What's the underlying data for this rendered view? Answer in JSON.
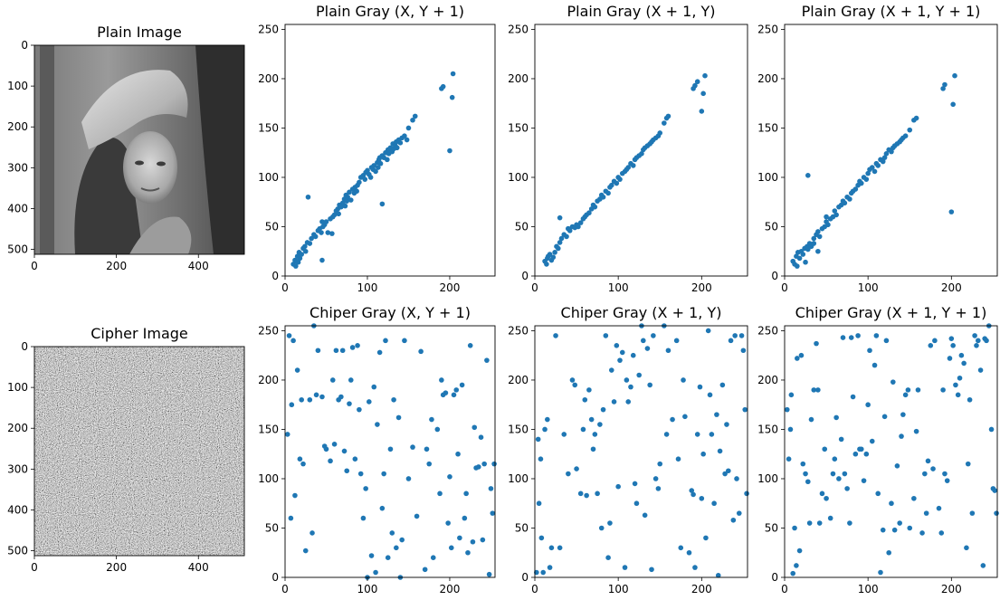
{
  "chart_data": [
    {
      "type": "image",
      "title": "Plain Image",
      "image": "grayscale photograph of a woman wearing a wide-brimmed hat",
      "xlim": [
        0,
        512
      ],
      "ylim": [
        512,
        0
      ],
      "xticks": [
        "0",
        "200",
        "400"
      ],
      "yticks": [
        "0",
        "100",
        "200",
        "300",
        "400",
        "500"
      ]
    },
    {
      "type": "scatter",
      "title": "Plain Gray (X, Y + 1)",
      "xlim": [
        0,
        255
      ],
      "ylim": [
        0,
        255
      ],
      "xticks": [
        "0",
        "100",
        "200"
      ],
      "yticks": [
        "0",
        "50",
        "100",
        "150",
        "200",
        "250"
      ],
      "color": "#1f77b4",
      "x": [
        10,
        12,
        13,
        14,
        15,
        16,
        17,
        18,
        20,
        22,
        24,
        25,
        27,
        30,
        32,
        35,
        37,
        40,
        42,
        44,
        45,
        46,
        48,
        50,
        52,
        55,
        57,
        58,
        60,
        62,
        64,
        65,
        66,
        68,
        70,
        72,
        73,
        74,
        75,
        76,
        78,
        80,
        82,
        84,
        85,
        87,
        88,
        90,
        92,
        95,
        97,
        98,
        100,
        102,
        104,
        105,
        107,
        108,
        110,
        112,
        113,
        114,
        115,
        116,
        118,
        120,
        122,
        124,
        125,
        126,
        128,
        130,
        131,
        132,
        134,
        135,
        136,
        138,
        140,
        142,
        145,
        148,
        150,
        155,
        158,
        190,
        192,
        200,
        203,
        204,
        45,
        28,
        118
      ],
      "y": [
        12,
        16,
        10,
        15,
        20,
        14,
        24,
        18,
        22,
        28,
        30,
        25,
        34,
        33,
        38,
        42,
        40,
        46,
        48,
        44,
        16,
        50,
        52,
        55,
        44,
        58,
        43,
        60,
        62,
        66,
        68,
        63,
        72,
        70,
        74,
        78,
        71,
        82,
        76,
        80,
        85,
        77,
        88,
        84,
        90,
        86,
        92,
        95,
        100,
        102,
        98,
        105,
        107,
        103,
        100,
        110,
        108,
        112,
        106,
        115,
        110,
        118,
        120,
        114,
        122,
        120,
        125,
        118,
        128,
        124,
        130,
        126,
        134,
        129,
        132,
        136,
        130,
        138,
        135,
        140,
        142,
        138,
        150,
        158,
        162,
        190,
        192,
        127,
        181,
        205,
        55,
        80,
        73
      ]
    },
    {
      "type": "scatter",
      "title": "Plain Gray (X + 1, Y)",
      "xlim": [
        0,
        255
      ],
      "ylim": [
        0,
        255
      ],
      "xticks": [
        "0",
        "100",
        "200"
      ],
      "yticks": [
        "0",
        "50",
        "100",
        "150",
        "200",
        "250"
      ],
      "color": "#1f77b4",
      "x": [
        12,
        14,
        15,
        16,
        18,
        20,
        22,
        24,
        26,
        28,
        30,
        32,
        35,
        38,
        40,
        42,
        45,
        48,
        50,
        52,
        55,
        58,
        60,
        62,
        65,
        68,
        70,
        72,
        75,
        78,
        80,
        82,
        85,
        88,
        90,
        92,
        95,
        98,
        100,
        102,
        105,
        108,
        110,
        112,
        115,
        118,
        120,
        122,
        125,
        128,
        130,
        132,
        135,
        138,
        140,
        142,
        145,
        148,
        150,
        155,
        158,
        160,
        190,
        192,
        195,
        200,
        202,
        204,
        30,
        40
      ],
      "y": [
        15,
        12,
        18,
        20,
        22,
        16,
        19,
        24,
        30,
        28,
        34,
        38,
        42,
        40,
        48,
        46,
        50,
        49,
        52,
        50,
        54,
        58,
        60,
        62,
        64,
        68,
        72,
        70,
        76,
        78,
        82,
        80,
        86,
        84,
        90,
        92,
        96,
        94,
        100,
        98,
        104,
        106,
        108,
        110,
        114,
        112,
        118,
        120,
        122,
        124,
        128,
        130,
        132,
        134,
        136,
        138,
        140,
        142,
        145,
        155,
        160,
        162,
        190,
        193,
        197,
        167,
        185,
        203,
        59,
        48
      ]
    },
    {
      "type": "scatter",
      "title": "Plain Gray (X + 1, Y + 1)",
      "xlim": [
        0,
        255
      ],
      "ylim": [
        0,
        255
      ],
      "xticks": [
        "0",
        "100",
        "200"
      ],
      "yticks": [
        "0",
        "50",
        "100",
        "150",
        "200",
        "250"
      ],
      "color": "#1f77b4",
      "x": [
        10,
        12,
        14,
        15,
        16,
        18,
        20,
        22,
        24,
        25,
        27,
        28,
        30,
        32,
        35,
        38,
        40,
        42,
        45,
        48,
        50,
        52,
        55,
        58,
        60,
        62,
        65,
        68,
        70,
        72,
        75,
        78,
        80,
        82,
        85,
        88,
        90,
        92,
        95,
        98,
        100,
        102,
        105,
        108,
        110,
        112,
        115,
        118,
        120,
        122,
        125,
        128,
        130,
        132,
        135,
        138,
        140,
        142,
        145,
        150,
        155,
        158,
        190,
        192,
        200,
        202,
        204,
        28,
        35,
        50,
        40
      ],
      "y": [
        15,
        12,
        20,
        10,
        24,
        18,
        25,
        22,
        28,
        14,
        30,
        27,
        33,
        30,
        38,
        42,
        45,
        40,
        48,
        50,
        55,
        52,
        58,
        60,
        66,
        62,
        70,
        72,
        76,
        74,
        80,
        78,
        84,
        86,
        88,
        92,
        96,
        94,
        100,
        98,
        104,
        108,
        110,
        106,
        114,
        112,
        118,
        116,
        120,
        124,
        128,
        126,
        130,
        132,
        134,
        136,
        138,
        140,
        142,
        148,
        158,
        160,
        190,
        194,
        65,
        174,
        203,
        102,
        33,
        60,
        25
      ]
    },
    {
      "type": "image",
      "title": "Cipher Image",
      "image": "uniform random grayscale noise",
      "xlim": [
        0,
        512
      ],
      "ylim": [
        512,
        0
      ],
      "xticks": [
        "0",
        "200",
        "400"
      ],
      "yticks": [
        "0",
        "100",
        "200",
        "300",
        "400",
        "500"
      ]
    },
    {
      "type": "scatter",
      "title": "Chiper Gray (X, Y + 1)",
      "xlim": [
        0,
        255
      ],
      "ylim": [
        0,
        255
      ],
      "xticks": [
        "0",
        "100",
        "200"
      ],
      "yticks": [
        "0",
        "50",
        "100",
        "150",
        "200",
        "250"
      ],
      "color": "#1f77b4",
      "x": [
        3,
        5,
        7,
        8,
        10,
        12,
        15,
        18,
        20,
        22,
        25,
        30,
        33,
        35,
        38,
        40,
        45,
        48,
        50,
        55,
        58,
        60,
        62,
        65,
        68,
        70,
        72,
        75,
        78,
        80,
        82,
        85,
        88,
        90,
        92,
        95,
        98,
        100,
        102,
        105,
        108,
        110,
        112,
        115,
        118,
        120,
        122,
        125,
        128,
        130,
        132,
        135,
        138,
        140,
        142,
        145,
        150,
        155,
        160,
        165,
        170,
        172,
        175,
        178,
        180,
        185,
        188,
        190,
        192,
        195,
        198,
        200,
        202,
        205,
        208,
        210,
        212,
        215,
        218,
        220,
        222,
        225,
        228,
        230,
        232,
        235,
        238,
        240,
        242,
        245,
        248,
        250,
        252,
        254
      ],
      "y": [
        145,
        245,
        60,
        175,
        240,
        83,
        210,
        120,
        180,
        115,
        27,
        180,
        45,
        255,
        185,
        230,
        183,
        133,
        130,
        118,
        200,
        135,
        230,
        180,
        183,
        230,
        128,
        108,
        176,
        200,
        233,
        120,
        235,
        170,
        105,
        60,
        90,
        0,
        178,
        22,
        193,
        5,
        155,
        228,
        70,
        105,
        240,
        20,
        130,
        45,
        180,
        30,
        162,
        0,
        38,
        240,
        100,
        132,
        62,
        229,
        8,
        130,
        115,
        160,
        20,
        150,
        85,
        200,
        185,
        187,
        55,
        102,
        30,
        185,
        190,
        125,
        40,
        195,
        60,
        85,
        25,
        235,
        36,
        152,
        111,
        112,
        142,
        38,
        115,
        220,
        3,
        90,
        65,
        115
      ]
    },
    {
      "type": "scatter",
      "title": "Chiper Gray (X + 1, Y)",
      "xlim": [
        0,
        255
      ],
      "ylim": [
        0,
        255
      ],
      "xticks": [
        "0",
        "100",
        "200"
      ],
      "yticks": [
        "0",
        "50",
        "100",
        "150",
        "200",
        "250"
      ],
      "color": "#1f77b4",
      "x": [
        2,
        4,
        5,
        7,
        8,
        10,
        12,
        15,
        18,
        20,
        25,
        30,
        35,
        40,
        45,
        48,
        50,
        55,
        58,
        60,
        62,
        65,
        68,
        70,
        72,
        75,
        78,
        80,
        82,
        85,
        88,
        90,
        92,
        95,
        98,
        100,
        102,
        105,
        108,
        110,
        112,
        115,
        118,
        120,
        122,
        125,
        128,
        130,
        132,
        135,
        138,
        140,
        142,
        145,
        148,
        150,
        155,
        158,
        160,
        165,
        170,
        172,
        175,
        178,
        180,
        185,
        188,
        190,
        192,
        195,
        198,
        200,
        202,
        205,
        208,
        210,
        212,
        215,
        218,
        220,
        222,
        225,
        228,
        230,
        232,
        235,
        238,
        240,
        242,
        245,
        248,
        250,
        252,
        254
      ],
      "y": [
        5,
        140,
        75,
        120,
        40,
        5,
        150,
        160,
        10,
        30,
        245,
        30,
        145,
        105,
        200,
        195,
        110,
        85,
        150,
        180,
        83,
        190,
        160,
        130,
        145,
        85,
        155,
        50,
        170,
        245,
        20,
        55,
        210,
        178,
        235,
        92,
        220,
        228,
        10,
        200,
        178,
        193,
        225,
        95,
        75,
        205,
        255,
        240,
        63,
        232,
        195,
        8,
        245,
        100,
        90,
        115,
        255,
        145,
        230,
        160,
        240,
        120,
        30,
        200,
        163,
        25,
        88,
        84,
        10,
        145,
        193,
        80,
        125,
        40,
        250,
        185,
        145,
        75,
        165,
        2,
        128,
        195,
        105,
        155,
        108,
        240,
        58,
        245,
        100,
        65,
        245,
        230,
        170,
        85
      ]
    },
    {
      "type": "scatter",
      "title": "Chiper Gray (X + 1, Y + 1)",
      "xlim": [
        0,
        255
      ],
      "ylim": [
        0,
        255
      ],
      "xticks": [
        "0",
        "100",
        "200"
      ],
      "yticks": [
        "0",
        "50",
        "100",
        "150",
        "200",
        "250"
      ],
      "color": "#1f77b4",
      "x": [
        3,
        5,
        7,
        8,
        10,
        12,
        14,
        15,
        18,
        20,
        22,
        25,
        28,
        30,
        32,
        35,
        38,
        40,
        42,
        45,
        48,
        50,
        55,
        58,
        60,
        62,
        65,
        68,
        70,
        72,
        75,
        78,
        80,
        82,
        85,
        88,
        90,
        92,
        95,
        98,
        100,
        102,
        105,
        108,
        110,
        112,
        115,
        118,
        120,
        122,
        125,
        128,
        130,
        132,
        135,
        138,
        140,
        142,
        145,
        148,
        150,
        155,
        158,
        160,
        165,
        168,
        170,
        172,
        175,
        178,
        180,
        185,
        188,
        190,
        192,
        195,
        198,
        200,
        202,
        205,
        208,
        210,
        212,
        215,
        218,
        220,
        222,
        225,
        228,
        230,
        232,
        235,
        238,
        240,
        242,
        245,
        248,
        250,
        252,
        254
      ],
      "y": [
        170,
        120,
        150,
        185,
        4,
        50,
        12,
        222,
        27,
        225,
        115,
        105,
        97,
        55,
        160,
        190,
        237,
        190,
        55,
        85,
        130,
        80,
        60,
        105,
        120,
        162,
        100,
        140,
        243,
        105,
        90,
        55,
        243,
        183,
        125,
        245,
        130,
        130,
        98,
        125,
        175,
        230,
        138,
        215,
        245,
        85,
        5,
        48,
        163,
        240,
        25,
        75,
        198,
        48,
        113,
        55,
        143,
        165,
        185,
        190,
        50,
        80,
        148,
        190,
        45,
        105,
        65,
        118,
        235,
        110,
        240,
        70,
        45,
        190,
        105,
        98,
        222,
        242,
        235,
        195,
        185,
        202,
        225,
        217,
        30,
        115,
        180,
        65,
        245,
        235,
        240,
        210,
        12,
        242,
        240,
        255,
        150,
        90,
        88,
        65
      ]
    }
  ]
}
